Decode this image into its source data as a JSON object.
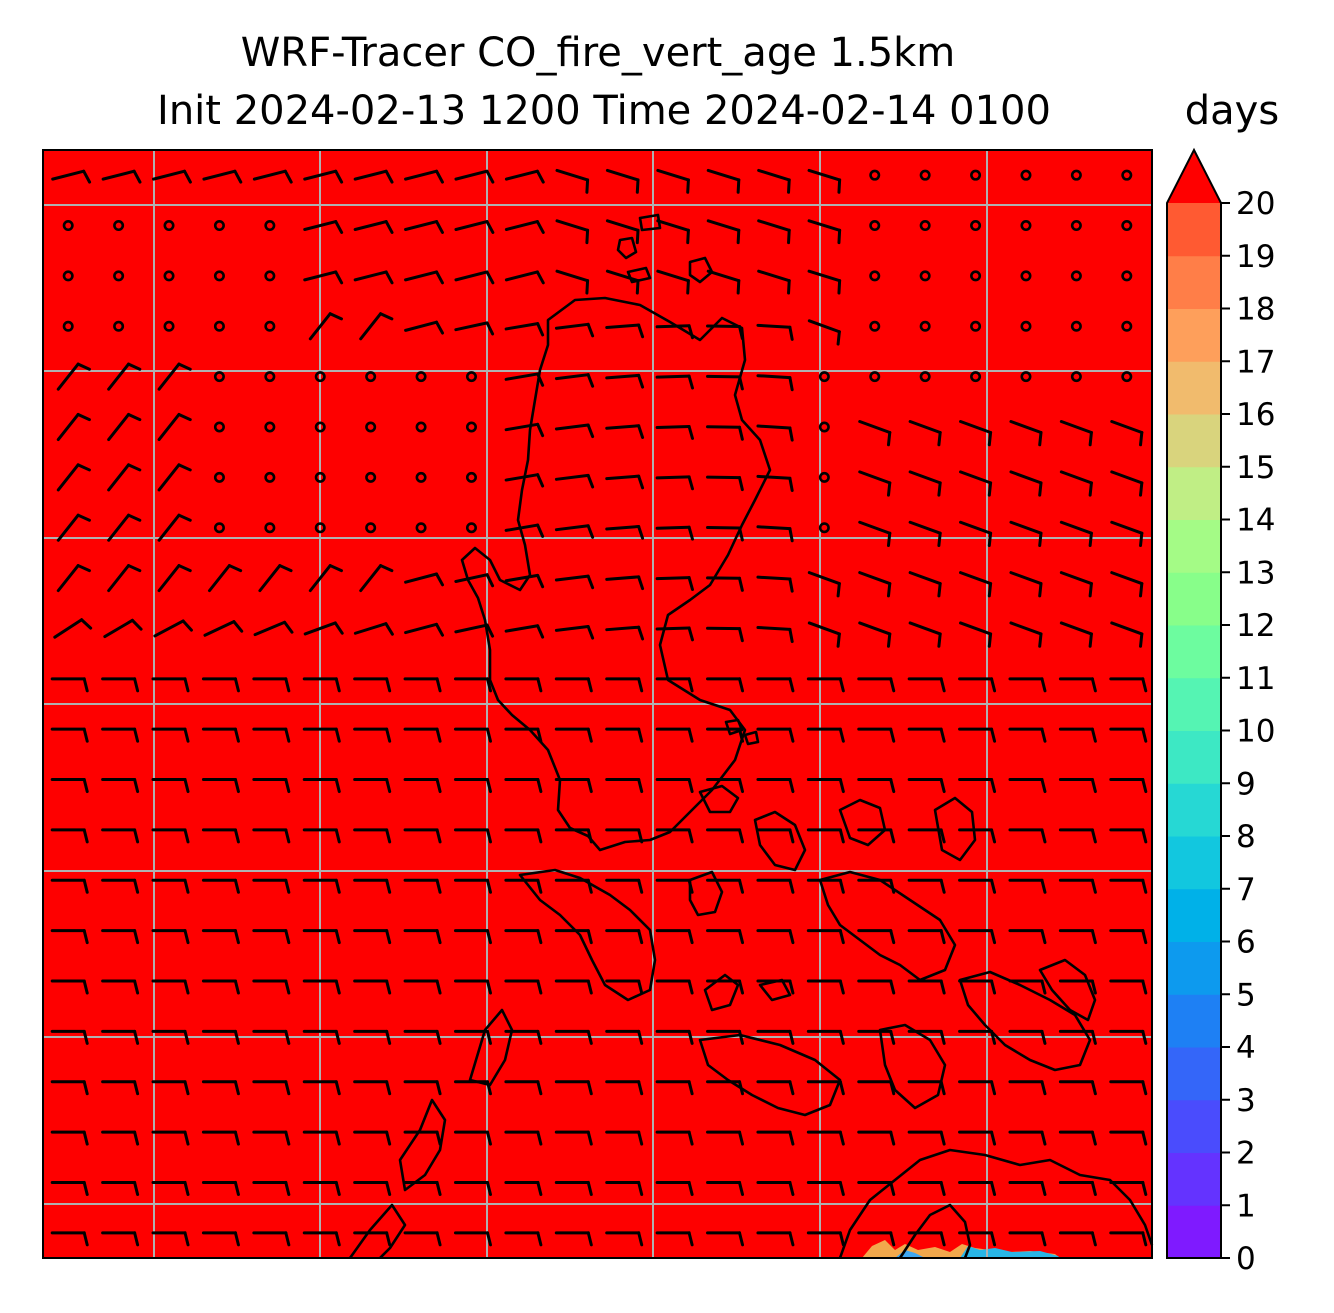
{
  "title": {
    "line1": "WRF-Tracer CO_fire_vert_age 1.5km",
    "line2": "Init 2024-02-13 1200 Time 2024-02-14 0100"
  },
  "colorbar": {
    "units": "days",
    "min": 0,
    "max": 20,
    "ticks": [
      "0",
      "1",
      "2",
      "3",
      "4",
      "5",
      "6",
      "7",
      "8",
      "9",
      "10",
      "11",
      "12",
      "13",
      "14",
      "15",
      "16",
      "17",
      "18",
      "19",
      "20"
    ],
    "colors": [
      "#7f1aff",
      "#6433ff",
      "#4a4cfd",
      "#3466f9",
      "#1e80f4",
      "#0d9aee",
      "#00b1e8",
      "#12c7df",
      "#26d8d4",
      "#3de8c4",
      "#55f4b3",
      "#6dfc9f",
      "#88fe8a",
      "#a4fb86",
      "#c0ee85",
      "#d9d47d",
      "#f1bb6d",
      "#fe9f5b",
      "#ff7e48",
      "#ff5a32",
      "#ff3a1d"
    ],
    "extend_color": "#ff0000"
  },
  "map": {
    "fill_color": "#fe0000",
    "grid_color": "#b0b0b0",
    "coast_color": "#000000",
    "barb_color": "#000000"
  }
}
